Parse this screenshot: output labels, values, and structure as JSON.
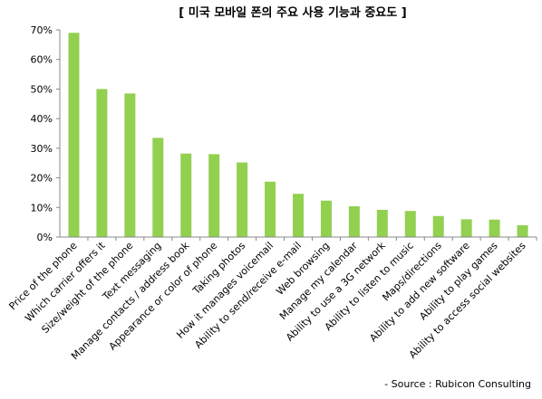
{
  "chart_data": {
    "type": "bar",
    "title": "[ 미국 모바일 폰의 주요 사용 기능과 중요도 ]",
    "source": "- Source : Rubicon Consulting",
    "xlabel": "",
    "ylabel": "",
    "ylim": [
      0,
      70
    ],
    "yticks": [
      "0%",
      "10%",
      "20%",
      "30%",
      "40%",
      "50%",
      "60%",
      "70%"
    ],
    "grid": false,
    "legend": "none",
    "bar_color": "#92d050",
    "categories": [
      "Price of the phone",
      "Which carrier offers it",
      "Size/weight of the phone",
      "Text messaging",
      "Manage contacts / address book",
      "Appearance or color of phone",
      "Taking photos",
      "How it manages voicemail",
      "Ability to send/receive e-mail",
      "Web browsing",
      "Manage my calendar",
      "Ability to use a 3G network",
      "Ability to listen to music",
      "Maps/directions",
      "Ability to add new software",
      "Ability to play games",
      "Ability to access social websites"
    ],
    "values": [
      69,
      50,
      48.5,
      33.5,
      28.2,
      28,
      25.2,
      18.7,
      14.6,
      12.3,
      10.4,
      9.2,
      8.8,
      7.1,
      6,
      5.9,
      4
    ]
  }
}
